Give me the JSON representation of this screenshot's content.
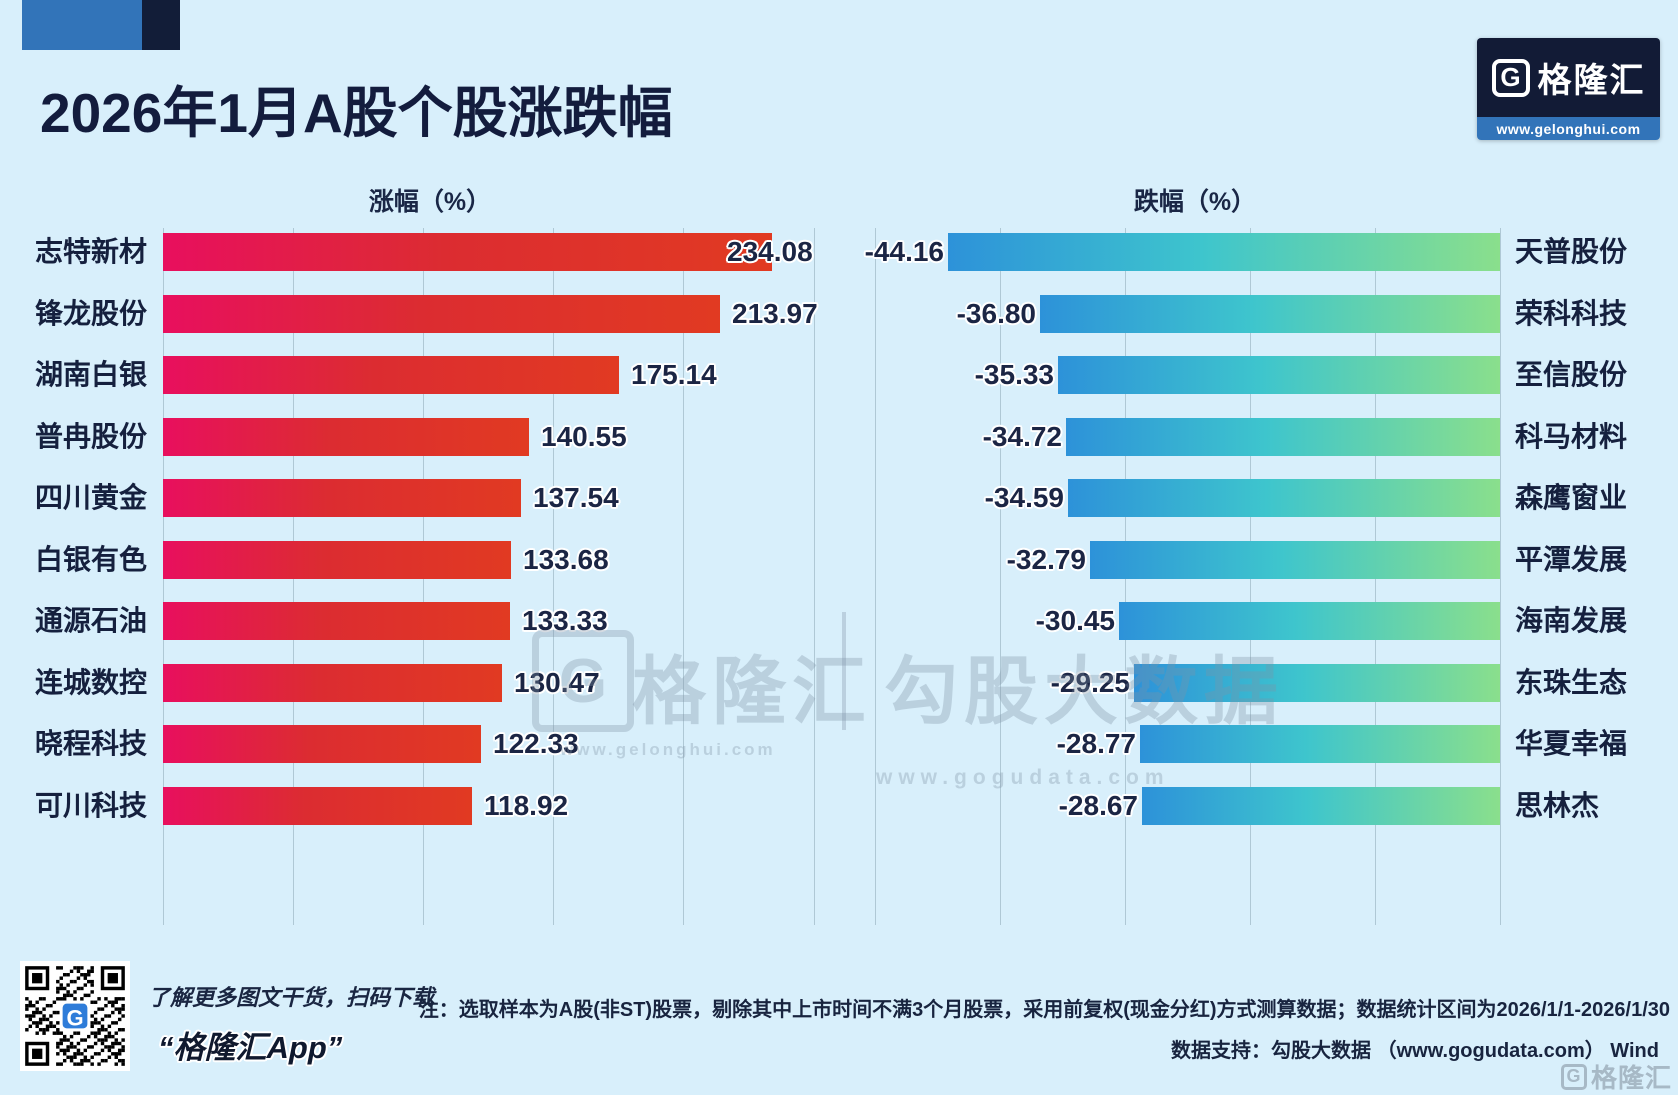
{
  "header": {
    "title": "2026年1月A股个股涨跌幅",
    "logo_letter": "G",
    "logo_brand": "格隆汇",
    "logo_url": "www.gelonghui.com"
  },
  "chart_data": [
    {
      "type": "bar",
      "title": "涨幅（%）",
      "orientation": "horizontal",
      "categories": [
        "志特新材",
        "锋龙股份",
        "湖南白银",
        "普冉股份",
        "四川黄金",
        "白银有色",
        "通源石油",
        "连城数控",
        "晓程科技",
        "可川科技"
      ],
      "values": [
        234.08,
        213.97,
        175.14,
        140.55,
        137.54,
        133.68,
        133.33,
        130.47,
        122.33,
        118.92
      ],
      "xlim": [
        0,
        250
      ],
      "gridline_values": [
        0,
        50,
        100,
        150,
        200,
        250
      ],
      "grid": "on",
      "bar_gradient": [
        "#e80f5e",
        "#dc2c31",
        "#e13a22"
      ]
    },
    {
      "type": "bar",
      "title": "跌幅（%）",
      "orientation": "horizontal",
      "categories": [
        "天普股份",
        "荣科科技",
        "至信股份",
        "科马材料",
        "森鹰窗业",
        "平潭发展",
        "海南发展",
        "东珠生态",
        "华夏幸福",
        "思林杰"
      ],
      "values": [
        -44.16,
        -36.8,
        -35.33,
        -34.72,
        -34.59,
        -32.79,
        -30.45,
        -29.25,
        -28.77,
        -28.67
      ],
      "xlim": [
        -50,
        0
      ],
      "gridline_values": [
        -50,
        -40,
        -30,
        -20,
        -10,
        0
      ],
      "grid": "on",
      "bar_gradient": [
        "#2d92d9",
        "#3ec5cd",
        "#8adf8c"
      ]
    }
  ],
  "watermark": {
    "logo_letter": "G",
    "brand": "格隆汇",
    "brand_url": "www.gelonghui.com",
    "divider": " ",
    "partner": "勾股大数据",
    "partner_url": "www.gogudata.com"
  },
  "footer": {
    "qr_caption_line1": "了解更多图文干货，扫码下载",
    "qr_caption_line2": "“格隆汇App”",
    "note_line1": "注：选取样本为A股(非ST)股票，剔除其中上市时间不满3个月股票，采用前复权(现金分红)方式测算数据；数据统计区间为2026/1/1-2026/1/30",
    "note_line2": "数据支持：勾股大数据 （www.gogudata.com） Wind",
    "corner_brand": "格隆汇"
  },
  "colors": {
    "background": "#d8effb",
    "title_text": "#131c3d",
    "deco_blue": "#3274b9",
    "deco_navy": "#121d38",
    "logo_bg": "#121b36",
    "logo_strip": "#3274b9",
    "gridline": "#7e98a6",
    "value_text": "#1b2544",
    "qr_logo_blue": "#2e7cd9",
    "watermark_gray": "#7f93a6"
  }
}
